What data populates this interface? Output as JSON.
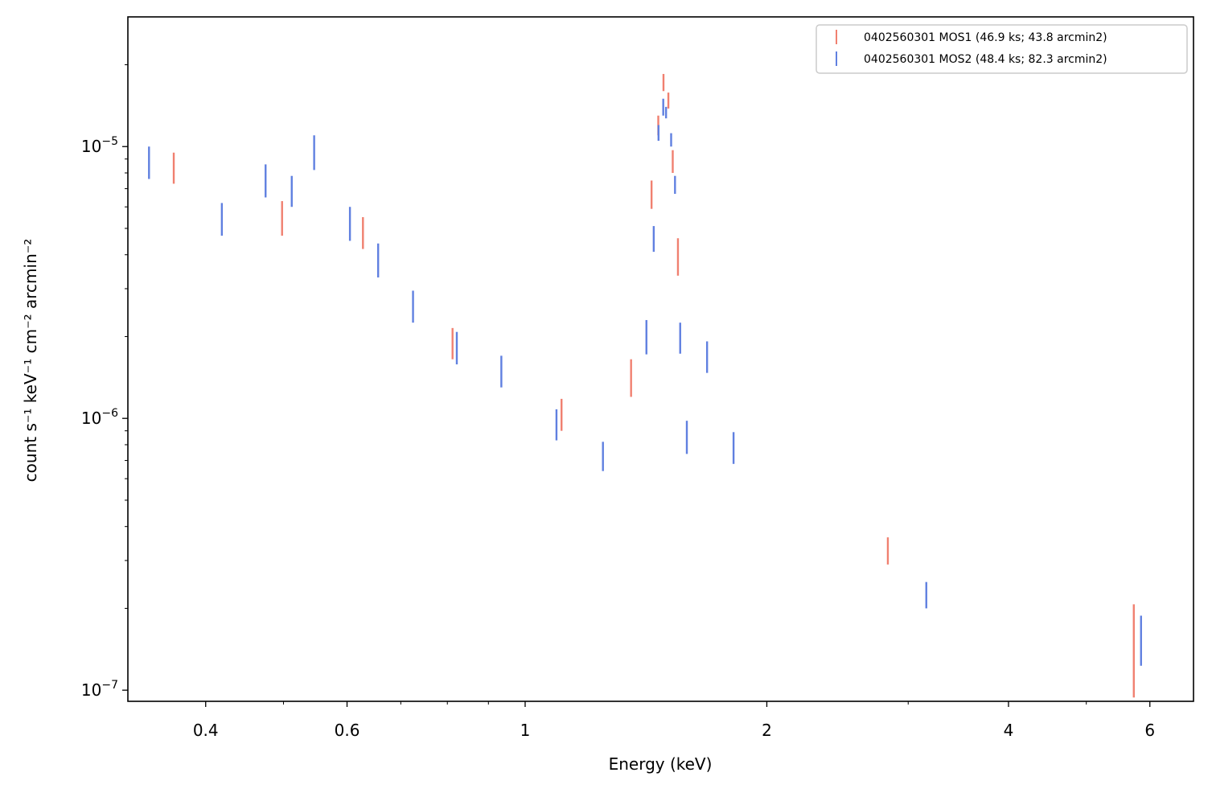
{
  "chart_data": {
    "type": "scatter",
    "xlabel": "Energy (keV)",
    "ylabel": "count s⁻¹ keV⁻¹ cm⁻² arcmin⁻²",
    "xscale": "log",
    "yscale": "log",
    "xlim": [
      0.32,
      6.8
    ],
    "ylim": [
      9.1e-08,
      3e-05
    ],
    "x_ticks": [
      {
        "value": 0.4,
        "label": "0.4"
      },
      {
        "value": 0.6,
        "label": "0.6"
      },
      {
        "value": 1,
        "label": "1"
      },
      {
        "value": 2,
        "label": "2"
      },
      {
        "value": 4,
        "label": "4"
      },
      {
        "value": 6,
        "label": "6"
      }
    ],
    "y_ticks": [
      {
        "value": 1e-07,
        "base": "10",
        "exp": "−7"
      },
      {
        "value": 1e-06,
        "base": "10",
        "exp": "−6"
      },
      {
        "value": 1e-05,
        "base": "10",
        "exp": "−5"
      }
    ],
    "grid": false,
    "legend_position": "top-right",
    "series": [
      {
        "name": "0402560301 MOS1 (46.9 ks; 43.8 arcmin2)",
        "color": "#f08070",
        "points": [
          {
            "x": 0.365,
            "lo": 7.3e-06,
            "hi": 9.5e-06
          },
          {
            "x": 0.498,
            "lo": 4.7e-06,
            "hi": 6.3e-06
          },
          {
            "x": 0.628,
            "lo": 4.2e-06,
            "hi": 5.5e-06
          },
          {
            "x": 0.812,
            "lo": 1.65e-06,
            "hi": 2.15e-06
          },
          {
            "x": 1.11,
            "lo": 9e-07,
            "hi": 1.18e-06
          },
          {
            "x": 1.355,
            "lo": 1.2e-06,
            "hi": 1.65e-06
          },
          {
            "x": 1.437,
            "lo": 5.9e-06,
            "hi": 7.5e-06
          },
          {
            "x": 1.465,
            "lo": 1.1e-05,
            "hi": 1.3e-05
          },
          {
            "x": 1.487,
            "lo": 1.6e-05,
            "hi": 1.85e-05
          },
          {
            "x": 1.508,
            "lo": 1.38e-05,
            "hi": 1.58e-05
          },
          {
            "x": 1.527,
            "lo": 8e-06,
            "hi": 9.7e-06
          },
          {
            "x": 1.55,
            "lo": 3.35e-06,
            "hi": 4.6e-06
          },
          {
            "x": 2.83,
            "lo": 2.9e-07,
            "hi": 3.65e-07
          },
          {
            "x": 5.73,
            "lo": 9.4e-08,
            "hi": 2.07e-07
          }
        ]
      },
      {
        "name": "0402560301 MOS2 (48.4 ks; 82.3 arcmin2)",
        "color": "#6080e0",
        "points": [
          {
            "x": 0.34,
            "lo": 7.6e-06,
            "hi": 1e-05
          },
          {
            "x": 0.419,
            "lo": 4.7e-06,
            "hi": 6.2e-06
          },
          {
            "x": 0.475,
            "lo": 6.5e-06,
            "hi": 8.6e-06
          },
          {
            "x": 0.512,
            "lo": 6e-06,
            "hi": 7.8e-06
          },
          {
            "x": 0.546,
            "lo": 8.2e-06,
            "hi": 1.1e-05
          },
          {
            "x": 0.605,
            "lo": 4.5e-06,
            "hi": 6e-06
          },
          {
            "x": 0.656,
            "lo": 3.3e-06,
            "hi": 4.4e-06
          },
          {
            "x": 0.725,
            "lo": 2.25e-06,
            "hi": 2.95e-06
          },
          {
            "x": 0.822,
            "lo": 1.58e-06,
            "hi": 2.08e-06
          },
          {
            "x": 0.934,
            "lo": 1.3e-06,
            "hi": 1.7e-06
          },
          {
            "x": 1.094,
            "lo": 8.3e-07,
            "hi": 1.08e-06
          },
          {
            "x": 1.25,
            "lo": 6.4e-07,
            "hi": 8.2e-07
          },
          {
            "x": 1.416,
            "lo": 1.72e-06,
            "hi": 2.3e-06
          },
          {
            "x": 1.446,
            "lo": 4.1e-06,
            "hi": 5.1e-06
          },
          {
            "x": 1.466,
            "lo": 1.05e-05,
            "hi": 1.2e-05
          },
          {
            "x": 1.486,
            "lo": 1.3e-05,
            "hi": 1.5e-05
          },
          {
            "x": 1.498,
            "lo": 1.27e-05,
            "hi": 1.4e-05
          },
          {
            "x": 1.52,
            "lo": 1e-05,
            "hi": 1.12e-05
          },
          {
            "x": 1.537,
            "lo": 6.7e-06,
            "hi": 7.8e-06
          },
          {
            "x": 1.56,
            "lo": 1.73e-06,
            "hi": 2.25e-06
          },
          {
            "x": 1.59,
            "lo": 7.4e-07,
            "hi": 9.8e-07
          },
          {
            "x": 1.685,
            "lo": 1.47e-06,
            "hi": 1.92e-06
          },
          {
            "x": 1.818,
            "lo": 6.8e-07,
            "hi": 8.9e-07
          },
          {
            "x": 3.16,
            "lo": 2e-07,
            "hi": 2.5e-07
          },
          {
            "x": 5.85,
            "lo": 1.23e-07,
            "hi": 1.88e-07
          }
        ]
      }
    ]
  }
}
